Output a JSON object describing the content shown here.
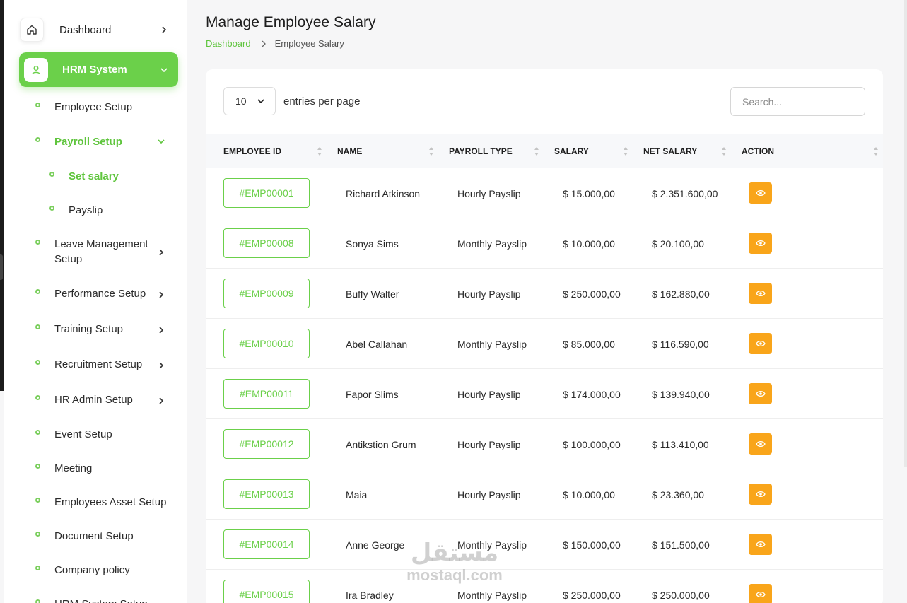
{
  "sidebar": {
    "dashboard": "Dashboard",
    "hrm": "HRM System",
    "items": [
      {
        "label": "Employee Setup"
      },
      {
        "label": "Payroll Setup"
      },
      {
        "label": "Set salary"
      },
      {
        "label": "Payslip"
      },
      {
        "label": "Leave Management Setup"
      },
      {
        "label": "Performance Setup"
      },
      {
        "label": "Training Setup"
      },
      {
        "label": "Recruitment Setup"
      },
      {
        "label": "HR Admin Setup"
      },
      {
        "label": "Event Setup"
      },
      {
        "label": "Meeting"
      },
      {
        "label": "Employees Asset Setup"
      },
      {
        "label": "Document Setup"
      },
      {
        "label": "Company policy"
      },
      {
        "label": "HRM System Setup"
      }
    ]
  },
  "page": {
    "title": "Manage Employee Salary",
    "breadcrumb_home": "Dashboard",
    "breadcrumb_current": "Employee Salary"
  },
  "controls": {
    "entries_value": "10",
    "entries_label": "entries per page",
    "search_placeholder": "Search..."
  },
  "table": {
    "headers": [
      "EMPLOYEE ID",
      "NAME",
      "PAYROLL TYPE",
      "SALARY",
      "NET SALARY",
      "ACTION"
    ],
    "rows": [
      {
        "id": "#EMP00001",
        "name": "Richard Atkinson",
        "type": "Hourly Payslip",
        "salary": "$ 15.000,00",
        "net": "$ 2.351.600,00"
      },
      {
        "id": "#EMP00008",
        "name": "Sonya Sims",
        "type": "Monthly Payslip",
        "salary": "$ 10.000,00",
        "net": "$ 20.100,00"
      },
      {
        "id": "#EMP00009",
        "name": "Buffy Walter",
        "type": "Hourly Payslip",
        "salary": "$ 250.000,00",
        "net": "$ 162.880,00"
      },
      {
        "id": "#EMP00010",
        "name": "Abel Callahan",
        "type": "Monthly Payslip",
        "salary": "$ 85.000,00",
        "net": "$ 116.590,00"
      },
      {
        "id": "#EMP00011",
        "name": "Fapor Slims",
        "type": "Hourly Payslip",
        "salary": "$ 174.000,00",
        "net": "$ 139.940,00"
      },
      {
        "id": "#EMP00012",
        "name": "Antikstion Grum",
        "type": "Hourly Payslip",
        "salary": "$ 100.000,00",
        "net": "$ 113.410,00"
      },
      {
        "id": "#EMP00013",
        "name": "Maia",
        "type": "Hourly Payslip",
        "salary": "$ 10.000,00",
        "net": "$ 23.360,00"
      },
      {
        "id": "#EMP00014",
        "name": "Anne George",
        "type": "Monthly Payslip",
        "salary": "$ 150.000,00",
        "net": "$ 151.500,00"
      },
      {
        "id": "#EMP00015",
        "name": "Ira Bradley",
        "type": "Monthly Payslip",
        "salary": "$ 250.000,00",
        "net": "$ 250.000,00"
      }
    ]
  },
  "watermark": {
    "arabic": "مستقل",
    "latin": "mostaql.com"
  },
  "colors": {
    "accent": "#6bd04a",
    "action": "#f9a51a"
  },
  "icons": {
    "dashboard": "home-icon",
    "hrm": "user-icon",
    "action": "eye-icon"
  }
}
